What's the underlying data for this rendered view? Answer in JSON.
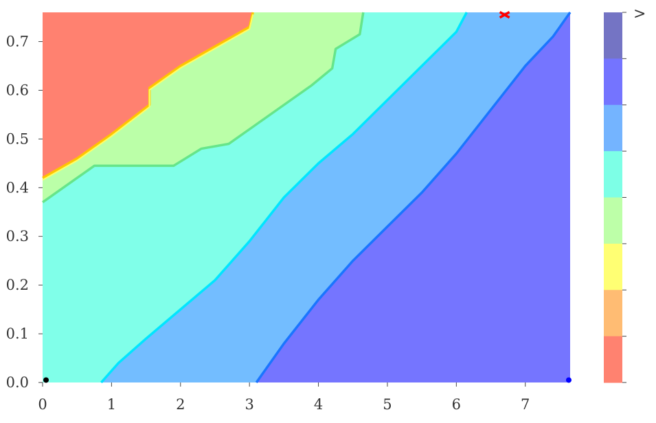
{
  "chart_data": {
    "type": "contour",
    "title": "",
    "xlabel": "",
    "ylabel": "",
    "xlim": [
      0,
      7.65
    ],
    "ylim": [
      0,
      0.76
    ],
    "x_ticks": [
      "0",
      "1",
      "2",
      "3",
      "4",
      "5",
      "6",
      "7"
    ],
    "y_ticks": [
      "0.0",
      "0.1",
      "0.2",
      "0.3",
      "0.4",
      "0.5",
      "0.6",
      "0.7"
    ],
    "grid": false,
    "levels": [
      {
        "name": "level-1",
        "color": "#7575ff"
      },
      {
        "name": "level-2",
        "color": "#73bdff"
      },
      {
        "name": "level-3",
        "color": "#80ffe9"
      },
      {
        "name": "level-4",
        "color": "#bbffa8"
      },
      {
        "name": "level-5",
        "color": "#ff8170"
      }
    ],
    "boundaries": [
      {
        "name": "level-1-2",
        "color": "#1a75ff",
        "points": [
          [
            3.1,
            0
          ],
          [
            3.5,
            0.08
          ],
          [
            4.0,
            0.17
          ],
          [
            4.5,
            0.25
          ],
          [
            5.0,
            0.32
          ],
          [
            5.5,
            0.39
          ],
          [
            6.0,
            0.47
          ],
          [
            6.5,
            0.56
          ],
          [
            7.0,
            0.65
          ],
          [
            7.4,
            0.71
          ],
          [
            7.65,
            0.76
          ]
        ]
      },
      {
        "name": "level-2-3",
        "color": "#00e5ff",
        "points": [
          [
            0.85,
            0
          ],
          [
            1.1,
            0.04
          ],
          [
            1.5,
            0.09
          ],
          [
            2.0,
            0.15
          ],
          [
            2.5,
            0.21
          ],
          [
            3.0,
            0.29
          ],
          [
            3.5,
            0.38
          ],
          [
            4.0,
            0.45
          ],
          [
            4.5,
            0.51
          ],
          [
            5.0,
            0.58
          ],
          [
            5.5,
            0.65
          ],
          [
            6.0,
            0.72
          ],
          [
            6.15,
            0.76
          ]
        ]
      },
      {
        "name": "level-3-4",
        "color": "#66e58a",
        "points": [
          [
            0,
            0.37
          ],
          [
            0.4,
            0.41
          ],
          [
            0.75,
            0.445
          ],
          [
            1.9,
            0.445
          ],
          [
            2.3,
            0.48
          ],
          [
            2.7,
            0.49
          ],
          [
            3.1,
            0.53
          ],
          [
            3.5,
            0.57
          ],
          [
            3.9,
            0.61
          ],
          [
            4.2,
            0.645
          ],
          [
            4.25,
            0.685
          ],
          [
            4.6,
            0.715
          ],
          [
            4.65,
            0.76
          ]
        ]
      },
      {
        "name": "level-4-5",
        "color": "#ffc400",
        "points": [
          [
            0,
            0.42
          ],
          [
            0.5,
            0.46
          ],
          [
            1.0,
            0.51
          ],
          [
            1.55,
            0.57
          ],
          [
            1.55,
            0.605
          ],
          [
            2.0,
            0.65
          ],
          [
            2.5,
            0.69
          ],
          [
            3.0,
            0.73
          ],
          [
            3.05,
            0.76
          ]
        ]
      }
    ],
    "markers": [
      {
        "name": "origin-marker",
        "x": 0.05,
        "y": 0.005,
        "color": "#000000"
      },
      {
        "name": "right-edge-marker",
        "x": 7.63,
        "y": 0.005,
        "color": "#0000ff"
      },
      {
        "name": "top-marker",
        "x": 6.7,
        "y": 0.755,
        "color": "#ff0000"
      }
    ],
    "colorbar": {
      "label": ">",
      "bands": [
        "#7474c4",
        "#7474ff",
        "#74b4ff",
        "#7dffe6",
        "#bdffa8",
        "#ffff73",
        "#ffbc73",
        "#ff8270"
      ]
    }
  }
}
